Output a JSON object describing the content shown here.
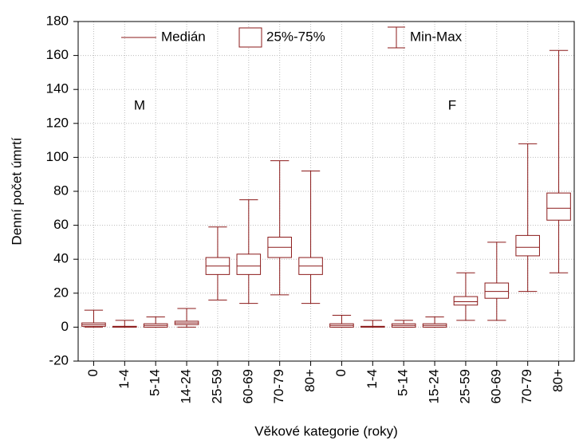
{
  "chart_data": {
    "type": "box",
    "y_label": "Denní počet úmrtí",
    "x_label": "Věkové kategorie (roky)",
    "categories": [
      "0",
      "1-4",
      "5-14",
      "14-24",
      "25-59",
      "60-69",
      "70-79",
      "80+",
      "0",
      "1-4",
      "5-14",
      "15-24",
      "25-59",
      "60-69",
      "70-79",
      "80+"
    ],
    "min": [
      0,
      0,
      0,
      0,
      16,
      14,
      19,
      14,
      0,
      0,
      0,
      0,
      4,
      4,
      21,
      32
    ],
    "q1": [
      0.5,
      0,
      0,
      1.5,
      31,
      31,
      41,
      31,
      0,
      0,
      0,
      0,
      13,
      17,
      42,
      63
    ],
    "median": [
      1.5,
      0,
      1,
      2.5,
      36,
      36,
      47,
      36,
      1,
      0,
      1,
      1,
      15,
      21,
      47,
      70
    ],
    "q3": [
      2.5,
      0.5,
      2,
      3.5,
      41,
      43,
      53,
      41,
      2,
      0.5,
      2,
      2,
      18,
      26,
      54,
      79
    ],
    "max": [
      10,
      4,
      6,
      11,
      59,
      75,
      98,
      92,
      7,
      4,
      4,
      6,
      32,
      50,
      108,
      163
    ],
    "color": "#8b1a1a",
    "legend": {
      "median": "Medián",
      "box": "25%-75%",
      "range": "Min-Max"
    },
    "annotations": [
      "M",
      "F"
    ],
    "ylim": [
      -20,
      180
    ],
    "yticks": [
      -20,
      0,
      20,
      40,
      60,
      80,
      100,
      120,
      140,
      160,
      180
    ],
    "grid": true
  }
}
